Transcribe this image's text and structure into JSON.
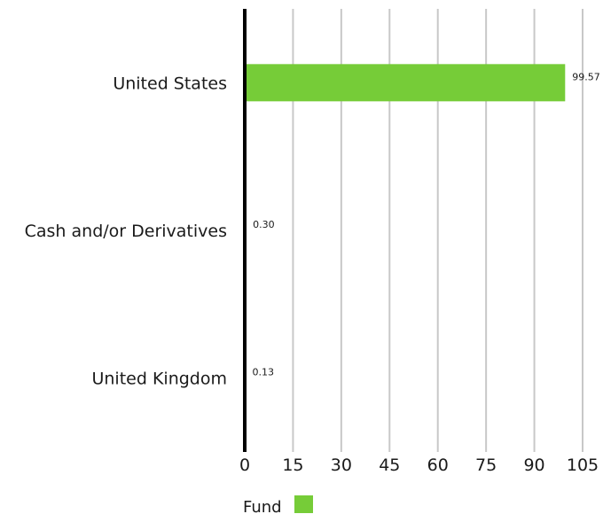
{
  "chart_data": {
    "type": "bar",
    "orientation": "horizontal",
    "categories": [
      "United States",
      "Cash and/or Derivatives",
      "United Kingdom"
    ],
    "series": [
      {
        "name": "Fund",
        "values": [
          99.57,
          0.3,
          0.13
        ],
        "color": "#76cc38"
      }
    ],
    "data_labels": [
      "99.57",
      "0.30",
      "0.13"
    ],
    "x_ticks": [
      0,
      15,
      30,
      45,
      60,
      75,
      90,
      105
    ],
    "xlim": [
      0,
      105
    ],
    "grid": "vertical",
    "legend_position": "bottom-left",
    "colors": {
      "bar": "#76cc38",
      "grid": "#c8c8c8",
      "axis": "#000000"
    }
  },
  "legend": {
    "label": "Fund"
  }
}
